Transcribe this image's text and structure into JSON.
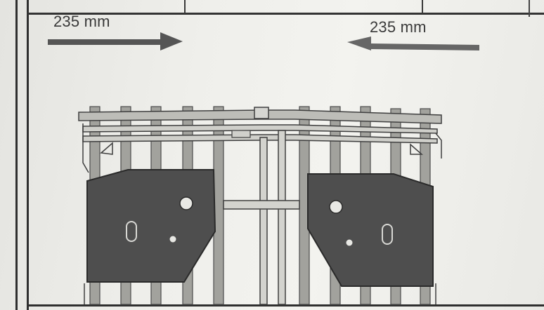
{
  "labels": {
    "left_measurement": "235 mm",
    "right_measurement": "235 mm"
  },
  "icons": {
    "left_arrow": "arrow-right-icon",
    "right_arrow": "arrow-left-icon",
    "figure": "fork-positioner-diagram"
  },
  "colors": {
    "ink": "#3d3d3d",
    "plate": "#4a4a4a",
    "paper": "#efefeb"
  }
}
